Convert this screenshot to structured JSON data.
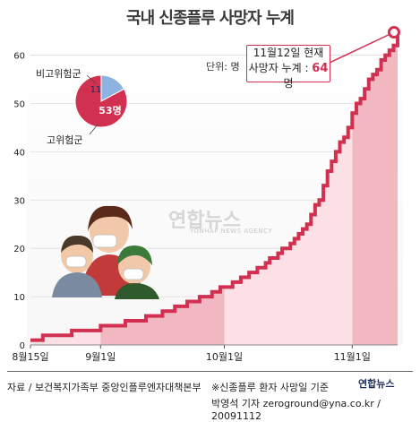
{
  "title": "국내 신종플루 사망자 누계",
  "unit_label": "단위: 명",
  "callout": {
    "line1": "11월12일 현재",
    "line2_prefix": "사망자 누계 : ",
    "line2_value": "64",
    "line2_suffix": "명"
  },
  "pie": {
    "low_risk_label": "비고위험군",
    "high_risk_label": "고위험군",
    "low_value_label": "11",
    "high_value_label": "53명"
  },
  "footer": {
    "source": "자료 / 보건복지가족부 중앙인플루엔자대책본부",
    "note": "※신종플루 환자 사망일 기준",
    "credit": "박영석 기자 zeroground@yna.co.kr / 20091112",
    "agency": "연합뉴스"
  },
  "watermark": {
    "text": "연합뉴스",
    "sub": "YONHAP NEWS AGENCY"
  },
  "colors": {
    "accent": "#d23050",
    "fill": "#f2b8c2",
    "fill_light": "#fbe1e6",
    "pie_low": "#8db4e0"
  },
  "chart_data": [
    {
      "type": "area",
      "title": "국내 신종플루 사망자 누계",
      "xlabel": "",
      "ylabel": "",
      "ylim": [
        0,
        64
      ],
      "yticks": [
        0,
        10,
        20,
        30,
        40,
        50,
        60
      ],
      "x_tick_labels": [
        "8월15일",
        "9월1일",
        "10월1일",
        "11월1일"
      ],
      "x_tick_days": [
        0,
        17,
        47,
        78
      ],
      "x_range_days": [
        0,
        89
      ],
      "step_days": [
        0,
        1,
        2,
        3,
        4,
        5,
        6,
        7,
        8,
        9,
        10,
        11,
        12,
        13,
        14,
        15,
        16,
        17,
        18,
        19,
        20,
        21,
        22,
        23,
        24,
        25,
        26,
        27,
        28,
        29,
        30,
        31,
        32,
        33,
        34,
        35,
        36,
        37,
        38,
        39,
        40,
        41,
        42,
        43,
        44,
        45,
        46,
        47,
        48,
        49,
        50,
        51,
        52,
        53,
        54,
        55,
        56,
        57,
        58,
        59,
        60,
        61,
        62,
        63,
        64,
        65,
        66,
        67,
        68,
        69,
        70,
        71,
        72,
        73,
        74,
        75,
        76,
        77,
        78,
        79,
        80,
        81,
        82,
        83,
        84,
        85,
        86,
        87,
        88,
        89
      ],
      "cumulative_deaths": [
        1,
        1,
        1,
        2,
        2,
        2,
        2,
        2,
        2,
        2,
        3,
        3,
        3,
        3,
        3,
        3,
        3,
        4,
        4,
        4,
        4,
        4,
        4,
        5,
        5,
        5,
        5,
        5,
        6,
        6,
        6,
        6,
        7,
        7,
        7,
        8,
        8,
        8,
        9,
        9,
        9,
        10,
        10,
        10,
        11,
        11,
        12,
        12,
        12,
        13,
        13,
        14,
        14,
        15,
        15,
        16,
        16,
        17,
        18,
        18,
        19,
        20,
        20,
        21,
        22,
        23,
        24,
        25,
        27,
        29,
        30,
        33,
        36,
        38,
        40,
        42,
        43,
        45,
        48,
        50,
        51,
        53,
        55,
        56,
        57,
        59,
        60,
        61,
        62,
        64
      ],
      "annotation": "11월12일 현재 사망자 누계 : 64명"
    },
    {
      "type": "pie",
      "labels": [
        "비고위험군",
        "고위험군"
      ],
      "values": [
        11,
        53
      ]
    }
  ]
}
